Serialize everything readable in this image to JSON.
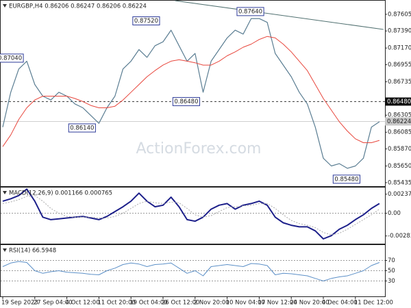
{
  "chart_data": [
    {
      "type": "line",
      "title": "EURGBP,H4 0.86206 0.86247 0.86206 0.86224",
      "watermark": "ActionForex.com",
      "categories": [
        "19 Sep 2023",
        null,
        null,
        null,
        "27 Sep 04:00",
        null,
        null,
        null,
        "4 Oct 12:00",
        null,
        null,
        null,
        "11 Oct 20:00",
        null,
        null,
        null,
        "19 Oct 04:00",
        null,
        null,
        null,
        "26 Oct 12:00",
        null,
        null,
        null,
        "2 Nov 20:00",
        null,
        null,
        null,
        "10 Nov 04:00",
        null,
        null,
        null,
        "17 Nov 12:00",
        null,
        null,
        null,
        "24 Nov 20:00",
        null,
        null,
        null,
        "4 Dec 04:00",
        null,
        null,
        null,
        "11 Dec 12:00",
        null,
        null,
        null
      ],
      "ylim": [
        0.8539,
        0.8778
      ],
      "yticks": [
        0.87605,
        {
          "value": 0.8739,
          "label": "0.87390"
        },
        {
          "value": 0.8717,
          "label": "0.87170"
        },
        0.86955,
        0.86735,
        0.86305,
        0.86085,
        {
          "value": 0.8587,
          "label": "0.85870"
        },
        {
          "value": 0.8565,
          "label": "0.85650"
        },
        0.85435
      ],
      "series": [
        {
          "color": "#5a7d92",
          "width": 1.2,
          "values": [
            0.8615,
            0.866,
            0.869,
            0.87,
            0.867,
            0.8655,
            0.865,
            0.866,
            0.8655,
            0.8645,
            0.864,
            0.863,
            0.862,
            0.864,
            0.8655,
            0.869,
            0.87,
            0.8715,
            0.8705,
            0.872,
            0.8725,
            0.874,
            0.872,
            0.87,
            0.871,
            0.866,
            0.87,
            0.8715,
            0.873,
            0.874,
            0.8735,
            0.8755,
            0.8755,
            0.875,
            0.871,
            0.8695,
            0.868,
            0.866,
            0.8645,
            0.8615,
            0.8575,
            0.8565,
            0.8568,
            0.8562,
            0.8565,
            0.8575,
            0.8615,
            0.8622
          ]
        },
        {
          "color": "#e8463c",
          "width": 1,
          "values": [
            0.859,
            0.8605,
            0.8625,
            0.864,
            0.865,
            0.8655,
            0.8655,
            0.8655,
            0.8655,
            0.8652,
            0.8648,
            0.8643,
            0.864,
            0.864,
            0.8642,
            0.865,
            0.866,
            0.867,
            0.868,
            0.8688,
            0.8695,
            0.87,
            0.8702,
            0.87,
            0.8698,
            0.8695,
            0.8695,
            0.87,
            0.8707,
            0.8712,
            0.8718,
            0.8722,
            0.8728,
            0.8732,
            0.873,
            0.8722,
            0.8712,
            0.87,
            0.8688,
            0.867,
            0.8652,
            0.8637,
            0.8622,
            0.861,
            0.86,
            0.8595,
            0.8595,
            0.8598
          ]
        }
      ],
      "trendline": {
        "color": "#4f6f6f",
        "x": [
          21.5,
          47.5
        ],
        "values": [
          0.8778,
          0.8741
        ]
      },
      "hline": {
        "value": 0.8648,
        "label": "0.86480"
      },
      "last_price": {
        "value": 0.86224,
        "label": "0.86224"
      },
      "annotations": [
        {
          "label": "0.87040",
          "value": 0.8704,
          "x": 3
        },
        {
          "label": "0.86140",
          "value": 0.8614,
          "x": 12
        },
        {
          "label": "0.87520",
          "value": 0.8752,
          "x": 20
        },
        {
          "label": "0.86480",
          "value": 0.8648,
          "x": 25
        },
        {
          "label": "0.87640",
          "value": 0.8764,
          "x": 33
        },
        {
          "label": "0.85480",
          "value": 0.8548,
          "x": 45
        }
      ]
    },
    {
      "type": "line",
      "title": "MACD(12,26,9) 0.001166 0.000765",
      "ylim": [
        -0.0038,
        0.0032
      ],
      "yticks": [
        0.002375,
        {
          "value": 0,
          "label": "0.00"
        },
        -0.002838
      ],
      "zero_line": true,
      "series": [
        {
          "color": "#1c1f8a",
          "width": 2,
          "values": [
            0.0015,
            0.0018,
            0.0022,
            0.003,
            0.0015,
            -0.0005,
            -0.0008,
            -0.0007,
            -0.0006,
            -0.0005,
            -0.0004,
            -0.0006,
            -0.0008,
            -0.0004,
            0.0002,
            0.0008,
            0.0015,
            0.0025,
            0.0015,
            0.0008,
            0.001,
            0.002,
            0.0008,
            -0.0008,
            -0.001,
            -0.0005,
            0.0005,
            0.001,
            0.0012,
            0.0005,
            0.001,
            0.0012,
            0.0015,
            0.001,
            -0.0005,
            -0.0012,
            -0.0015,
            -0.0017,
            -0.0017,
            -0.0022,
            -0.0032,
            -0.0028,
            -0.002,
            -0.0015,
            -0.0008,
            -0.0002,
            0.0006,
            0.0012
          ]
        },
        {
          "color": "#aaaaaa",
          "width": 1,
          "dotted": true,
          "values": [
            0.0012,
            0.0014,
            0.0017,
            0.0021,
            0.0022,
            0.0015,
            0.0006,
            0.0,
            -0.0004,
            -0.0005,
            -0.0005,
            -0.0005,
            -0.0006,
            -0.0006,
            -0.0004,
            0.0,
            0.0006,
            0.0012,
            0.0015,
            0.0013,
            0.0012,
            0.0014,
            0.0013,
            0.0006,
            -0.0002,
            -0.0005,
            -0.0003,
            0.0002,
            0.0007,
            0.0008,
            0.0009,
            0.001,
            0.0012,
            0.0012,
            0.0006,
            -0.0002,
            -0.0009,
            -0.0013,
            -0.0015,
            -0.0018,
            -0.0024,
            -0.0027,
            -0.0025,
            -0.002,
            -0.0014,
            -0.0008,
            -0.0002,
            0.0005
          ]
        }
      ]
    },
    {
      "type": "line",
      "title": "RSI(14) 66.5948",
      "ylim": [
        0,
        100
      ],
      "yticks": [
        70,
        50,
        30
      ],
      "grid": true,
      "series": [
        {
          "color": "#5b8fc7",
          "width": 1,
          "values": [
            58,
            65,
            68,
            66,
            50,
            45,
            48,
            50,
            47,
            46,
            45,
            43,
            42,
            50,
            55,
            62,
            65,
            63,
            58,
            62,
            63,
            65,
            55,
            45,
            50,
            40,
            58,
            60,
            62,
            60,
            58,
            64,
            63,
            60,
            42,
            45,
            44,
            42,
            40,
            35,
            30,
            35,
            38,
            40,
            45,
            50,
            60,
            66
          ]
        }
      ]
    }
  ]
}
